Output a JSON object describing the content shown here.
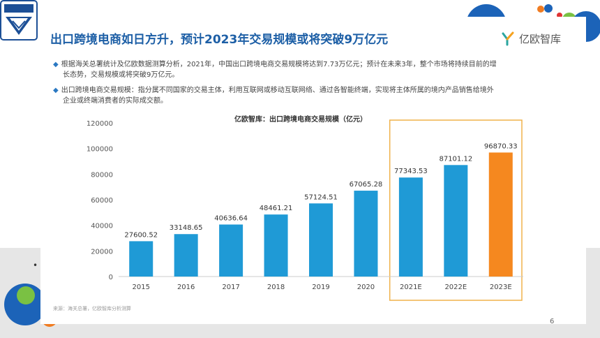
{
  "slide": {
    "title": "出口跨境电商如日方升，预计2023年交易规模或将突破9万亿元",
    "brand": "亿欧智库",
    "bullets": [
      {
        "line1": "根据海关总署统计及亿欧数据测算分析，2021年，中国出口跨境电商交易规模将达到7.73万亿元；预计在未来3年，整个市场将持续目前的增",
        "line2": "长态势，交易规模或将突破9万亿元。"
      },
      {
        "line1": "出口跨境电商交易规模：指分属不同国家的交易主体，利用互联网或移动互联网络、通过各智能终端，实现将主体所属的境内产品销售给境外",
        "line2": "企业或终端消费者的实际成交额。"
      }
    ],
    "source": "来源：海关总署，亿欧智库分析测算",
    "page_number": "6",
    "stray_bullet": "•"
  },
  "colors": {
    "title": "#1d5fa6",
    "bar_actual": "#1f9ad6",
    "bar_highlight": "#f5881f",
    "highlight_box": "#f0b24a"
  },
  "chart_data": {
    "type": "bar",
    "title": "亿欧智库：出口跨境电商交易规模（亿元）",
    "categories": [
      "2015",
      "2016",
      "2017",
      "2018",
      "2019",
      "2020",
      "2021E",
      "2022E",
      "2023E"
    ],
    "values": [
      27600.52,
      33148.65,
      40636.64,
      48461.21,
      57124.51,
      67065.28,
      77343.53,
      87101.12,
      96870.33
    ],
    "value_labels": [
      "27600.52",
      "33148.65",
      "40636.64",
      "48461.21",
      "57124.51",
      "67065.28",
      "77343.53",
      "87101.12",
      "96870.33"
    ],
    "ylim": [
      0,
      120000
    ],
    "yticks": [
      "0",
      "20000",
      "40000",
      "60000",
      "80000",
      "100000",
      "120000"
    ],
    "ytick_values": [
      0,
      20000,
      40000,
      60000,
      80000,
      100000,
      120000
    ],
    "highlighted_categories": [
      "2021E",
      "2022E",
      "2023E"
    ],
    "orange_category": "2023E",
    "grid": false
  }
}
